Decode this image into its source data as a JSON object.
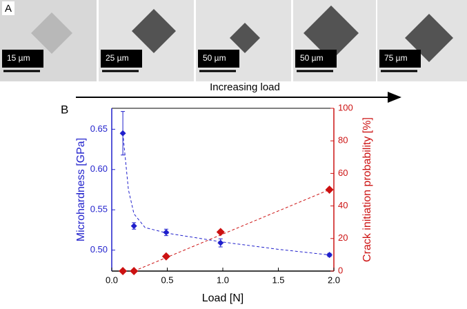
{
  "figure": {
    "panel_a_label": "A",
    "scale_bars": [
      "15 µm",
      "25 µm",
      "50 µm",
      "50 µm",
      "75 µm"
    ],
    "arrow_label": "Increasing load",
    "panel_b_label": "B"
  },
  "chart_data": {
    "type": "scatter",
    "x_label": "Load [N]",
    "y_label": "Microhardness [GPa]",
    "y2_label": "Crack initiation probability [%]",
    "xlim": [
      0,
      2
    ],
    "xticks": [
      {
        "value": 0,
        "label": "0.0"
      },
      {
        "value": 0.5,
        "label": "0.5"
      },
      {
        "value": 1,
        "label": "1.0"
      },
      {
        "value": 1.5,
        "label": "1.5"
      },
      {
        "value": 2,
        "label": "2.0"
      }
    ],
    "ylim": [
      0.474,
      0.676
    ],
    "yticks": [
      {
        "value": 0.5,
        "label": "0.50"
      },
      {
        "value": 0.55,
        "label": "0.55"
      },
      {
        "value": 0.6,
        "label": "0.60"
      },
      {
        "value": 0.65,
        "label": "0.65"
      }
    ],
    "y2lim": [
      0,
      100
    ],
    "y2ticks": [
      0,
      20,
      40,
      60,
      80,
      100
    ],
    "series": [
      {
        "color": "#1f1fcc",
        "x": [
          0.1,
          0.2,
          0.49,
          0.98,
          1.96
        ],
        "values": [
          0.645,
          0.53,
          0.522,
          0.509,
          0.494
        ],
        "errors": [
          0.027,
          0.004,
          0.004,
          0.005,
          0.002
        ],
        "fit_x": [
          0.1,
          0.15,
          0.2,
          0.3,
          0.5,
          1.0,
          1.5,
          1.96
        ],
        "fit_values": [
          0.645,
          0.575,
          0.545,
          0.528,
          0.521,
          0.51,
          0.501,
          0.494
        ]
      },
      {
        "color": "#cc1111",
        "axis": "y2",
        "x": [
          0.1,
          0.2,
          0.49,
          0.98,
          1.96
        ],
        "values": [
          0,
          0,
          9,
          24,
          50
        ],
        "fit_x": [
          0.2,
          1.96
        ],
        "fit_values": [
          0,
          50
        ]
      }
    ]
  }
}
